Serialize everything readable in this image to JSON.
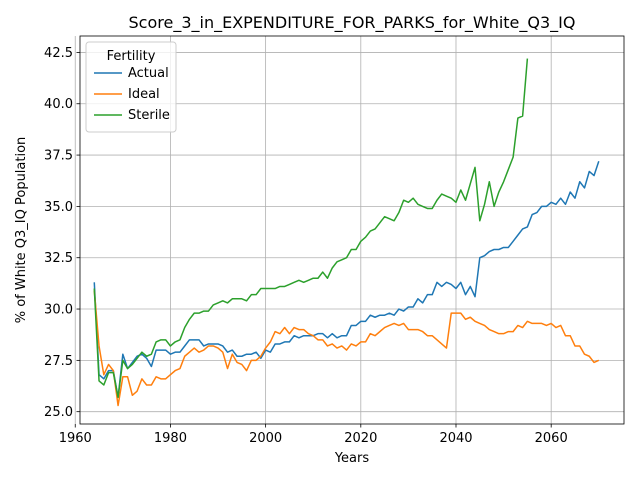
{
  "chart_data": {
    "type": "line",
    "title": "Score_3_in_EXPENDITURE_FOR_PARKS_for_White_Q3_IQ",
    "xlabel": "Years",
    "ylabel": "% of White Q3_IQ Population",
    "xlim": [
      1961,
      2075.3
    ],
    "ylim": [
      24.4,
      43.3
    ],
    "xticks": [
      1960,
      1980,
      2000,
      2020,
      2040,
      2060
    ],
    "yticks": [
      25.0,
      27.5,
      30.0,
      32.5,
      35.0,
      37.5,
      40.0,
      42.5
    ],
    "ytick_labels": [
      "25.0",
      "27.5",
      "30.0",
      "32.5",
      "35.0",
      "37.5",
      "40.0",
      "42.5"
    ],
    "grid": true,
    "legend": {
      "title": "Fertility",
      "position": "top-left"
    },
    "series": [
      {
        "name": "Actual",
        "color": "#1f77b4",
        "x": [
          1964,
          1965,
          1966,
          1967,
          1968,
          1969,
          1970,
          1971,
          1972,
          1973,
          1974,
          1975,
          1976,
          1977,
          1978,
          1979,
          1980,
          1981,
          1982,
          1983,
          1984,
          1985,
          1986,
          1987,
          1988,
          1989,
          1990,
          1991,
          1992,
          1993,
          1994,
          1995,
          1996,
          1997,
          1998,
          1999,
          2000,
          2001,
          2002,
          2003,
          2004,
          2005,
          2006,
          2007,
          2008,
          2009,
          2010,
          2011,
          2012,
          2013,
          2014,
          2015,
          2016,
          2017,
          2018,
          2019,
          2020,
          2021,
          2022,
          2023,
          2024,
          2025,
          2026,
          2027,
          2028,
          2029,
          2030,
          2031,
          2032,
          2033,
          2034,
          2035,
          2036,
          2037,
          2038,
          2039,
          2040,
          2041,
          2042,
          2043,
          2044,
          2045,
          2046,
          2047,
          2048,
          2049,
          2050,
          2051,
          2052,
          2053,
          2054,
          2055,
          2056,
          2057,
          2058,
          2059,
          2060,
          2061,
          2062,
          2063,
          2064,
          2065,
          2066,
          2067,
          2068,
          2069,
          2070
        ],
        "y": [
          31.3,
          26.8,
          26.6,
          27.0,
          27.0,
          25.7,
          27.8,
          27.1,
          27.4,
          27.7,
          27.8,
          27.6,
          27.2,
          28.0,
          28.0,
          28.0,
          27.8,
          27.9,
          27.9,
          28.2,
          28.5,
          28.5,
          28.5,
          28.2,
          28.3,
          28.3,
          28.3,
          28.2,
          27.9,
          28.0,
          27.7,
          27.7,
          27.8,
          27.8,
          27.9,
          27.6,
          28.0,
          27.9,
          28.3,
          28.3,
          28.4,
          28.4,
          28.7,
          28.6,
          28.7,
          28.7,
          28.7,
          28.8,
          28.8,
          28.6,
          28.8,
          28.6,
          28.7,
          28.7,
          29.2,
          29.2,
          29.4,
          29.4,
          29.7,
          29.6,
          29.7,
          29.7,
          29.8,
          29.7,
          30.0,
          29.9,
          30.1,
          30.1,
          30.5,
          30.3,
          30.7,
          30.7,
          31.3,
          31.1,
          31.3,
          31.2,
          31.0,
          31.3,
          30.7,
          31.1,
          30.6,
          32.5,
          32.6,
          32.8,
          32.9,
          32.9,
          33.0,
          33.0,
          33.3,
          33.6,
          33.9,
          34.0,
          34.6,
          34.7,
          35.0,
          35.0,
          35.2,
          35.1,
          35.4,
          35.1,
          35.7,
          35.4,
          36.2,
          35.9,
          36.7,
          36.5,
          37.2
        ]
      },
      {
        "name": "Ideal",
        "color": "#ff7f0e",
        "x": [
          1964,
          1965,
          1966,
          1967,
          1968,
          1969,
          1970,
          1971,
          1972,
          1973,
          1974,
          1975,
          1976,
          1977,
          1978,
          1979,
          1980,
          1981,
          1982,
          1983,
          1984,
          1985,
          1986,
          1987,
          1988,
          1989,
          1990,
          1991,
          1992,
          1993,
          1994,
          1995,
          1996,
          1997,
          1998,
          1999,
          2000,
          2001,
          2002,
          2003,
          2004,
          2005,
          2006,
          2007,
          2008,
          2009,
          2010,
          2011,
          2012,
          2013,
          2014,
          2015,
          2016,
          2017,
          2018,
          2019,
          2020,
          2021,
          2022,
          2023,
          2024,
          2025,
          2026,
          2027,
          2028,
          2029,
          2030,
          2031,
          2032,
          2033,
          2034,
          2035,
          2036,
          2037,
          2038,
          2039,
          2040,
          2041,
          2042,
          2043,
          2044,
          2045,
          2046,
          2047,
          2048,
          2049,
          2050,
          2051,
          2052,
          2053,
          2054,
          2055,
          2056,
          2057,
          2058,
          2059,
          2060,
          2061,
          2062,
          2063,
          2064,
          2065,
          2066,
          2067,
          2068,
          2069,
          2070
        ],
        "y": [
          30.9,
          28.2,
          26.8,
          27.3,
          27.0,
          25.3,
          26.7,
          26.7,
          25.8,
          26.0,
          26.6,
          26.3,
          26.3,
          26.7,
          26.6,
          26.6,
          26.8,
          27.0,
          27.1,
          27.7,
          27.9,
          28.1,
          27.9,
          28.0,
          28.2,
          28.2,
          28.1,
          27.9,
          27.1,
          27.8,
          27.4,
          27.3,
          27.0,
          27.5,
          27.5,
          27.7,
          28.1,
          28.4,
          28.9,
          28.8,
          29.1,
          28.8,
          29.1,
          29.0,
          29.0,
          28.8,
          28.7,
          28.5,
          28.5,
          28.2,
          28.3,
          28.1,
          28.2,
          28.0,
          28.3,
          28.2,
          28.4,
          28.4,
          28.8,
          28.7,
          28.9,
          29.1,
          29.2,
          29.3,
          29.2,
          29.3,
          29.0,
          29.0,
          29.0,
          28.9,
          28.7,
          28.7,
          28.5,
          28.3,
          28.1,
          29.8,
          29.8,
          29.8,
          29.5,
          29.6,
          29.4,
          29.3,
          29.2,
          29.0,
          28.9,
          28.8,
          28.8,
          28.9,
          28.9,
          29.2,
          29.1,
          29.4,
          29.3,
          29.3,
          29.3,
          29.2,
          29.3,
          29.1,
          29.2,
          28.7,
          28.7,
          28.2,
          28.2,
          27.8,
          27.7,
          27.4,
          27.5
        ]
      },
      {
        "name": "Sterile",
        "color": "#2ca02c",
        "x": [
          1964,
          1965,
          1966,
          1967,
          1968,
          1969,
          1970,
          1971,
          1972,
          1973,
          1974,
          1975,
          1976,
          1977,
          1978,
          1979,
          1980,
          1981,
          1982,
          1983,
          1984,
          1985,
          1986,
          1987,
          1988,
          1989,
          1990,
          1991,
          1992,
          1993,
          1994,
          1995,
          1996,
          1997,
          1998,
          1999,
          2000,
          2001,
          2002,
          2003,
          2004,
          2005,
          2006,
          2007,
          2008,
          2009,
          2010,
          2011,
          2012,
          2013,
          2014,
          2015,
          2016,
          2017,
          2018,
          2019,
          2020,
          2021,
          2022,
          2023,
          2024,
          2025,
          2026,
          2027,
          2028,
          2029,
          2030,
          2031,
          2032,
          2033,
          2034,
          2035,
          2036,
          2037,
          2038,
          2039,
          2040,
          2041,
          2042,
          2043,
          2044,
          2045,
          2046,
          2047,
          2048,
          2049,
          2050,
          2051,
          2052,
          2053,
          2054,
          2055
        ],
        "y": [
          31.0,
          26.5,
          26.3,
          26.9,
          26.9,
          25.7,
          27.5,
          27.1,
          27.3,
          27.6,
          27.9,
          27.7,
          27.8,
          28.4,
          28.5,
          28.5,
          28.2,
          28.4,
          28.5,
          29.1,
          29.5,
          29.8,
          29.8,
          29.9,
          29.9,
          30.2,
          30.3,
          30.4,
          30.3,
          30.5,
          30.5,
          30.5,
          30.4,
          30.7,
          30.7,
          31.0,
          31.0,
          31.0,
          31.0,
          31.1,
          31.1,
          31.2,
          31.3,
          31.4,
          31.3,
          31.4,
          31.5,
          31.5,
          31.8,
          31.5,
          32.0,
          32.3,
          32.4,
          32.5,
          32.9,
          32.9,
          33.3,
          33.5,
          33.8,
          33.9,
          34.2,
          34.5,
          34.4,
          34.3,
          34.7,
          35.3,
          35.2,
          35.4,
          35.1,
          35.0,
          34.9,
          34.9,
          35.3,
          35.6,
          35.5,
          35.4,
          35.2,
          35.8,
          35.3,
          36.1,
          36.9,
          34.3,
          35.1,
          36.2,
          35.0,
          35.7,
          36.2,
          36.8,
          37.4,
          39.3,
          39.4,
          42.2
        ]
      }
    ]
  }
}
